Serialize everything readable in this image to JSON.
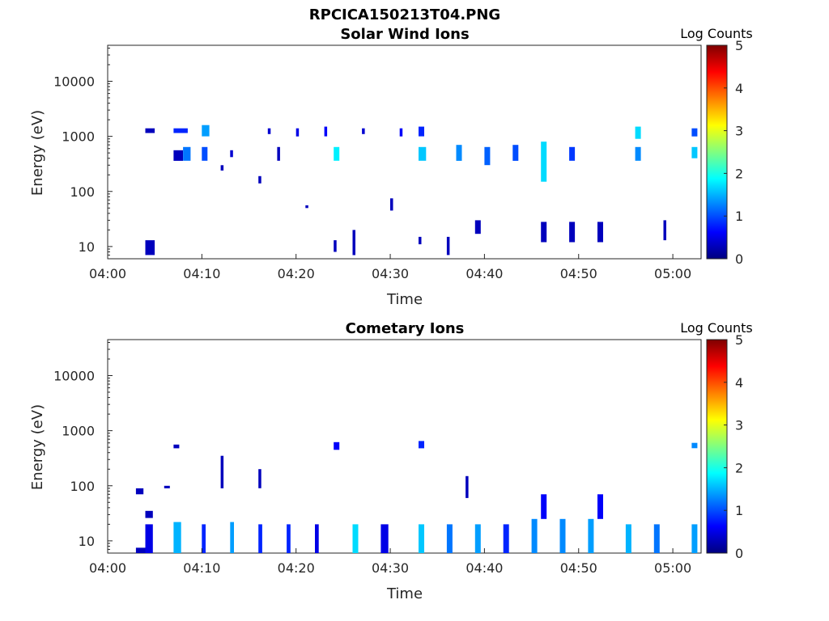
{
  "figure": {
    "title": "RPCICA150213T04.PNG"
  },
  "colorbar_colors": [
    "#00007f",
    "#0000ff",
    "#0080ff",
    "#00ffff",
    "#80ff80",
    "#ffff00",
    "#ff8000",
    "#ff0000",
    "#7f0000"
  ],
  "chart_data": [
    {
      "type": "heatmap",
      "title": "Solar Wind Ions",
      "xlabel": "Time",
      "ylabel": "Energy (eV)",
      "xlim": [
        "04:00",
        "05:03"
      ],
      "ylim": [
        6,
        45000
      ],
      "y_scale": "log",
      "x_ticks": [
        "04:00",
        "04:10",
        "04:20",
        "04:30",
        "04:40",
        "04:50",
        "05:00"
      ],
      "y_ticks": [
        "10",
        "100",
        "1000",
        "10000"
      ],
      "colorbar": {
        "label": "Log Counts",
        "range": [
          0,
          5
        ],
        "ticks": [
          "0",
          "1",
          "2",
          "3",
          "4",
          "5"
        ]
      },
      "colormap": "jet",
      "cells": [
        {
          "t": "04:04",
          "dt": 1,
          "e_lo": 1150,
          "e_hi": 1400,
          "v": 0.3
        },
        {
          "t": "04:04",
          "dt": 1,
          "e_lo": 7,
          "e_hi": 13,
          "v": 0.3
        },
        {
          "t": "04:07",
          "dt": 1.5,
          "e_lo": 1150,
          "e_hi": 1400,
          "v": 0.8
        },
        {
          "t": "04:07",
          "dt": 1,
          "e_lo": 360,
          "e_hi": 560,
          "v": 0.3
        },
        {
          "t": "04:08",
          "dt": 0.8,
          "e_lo": 360,
          "e_hi": 640,
          "v": 1.2
        },
        {
          "t": "04:10",
          "dt": 0.8,
          "e_lo": 1000,
          "e_hi": 1600,
          "v": 1.4
        },
        {
          "t": "04:10",
          "dt": 0.6,
          "e_lo": 360,
          "e_hi": 640,
          "v": 1.0
        },
        {
          "t": "04:12",
          "dt": 0.3,
          "e_lo": 240,
          "e_hi": 300,
          "v": 0.3
        },
        {
          "t": "04:13",
          "dt": 0.3,
          "e_lo": 420,
          "e_hi": 560,
          "v": 0.4
        },
        {
          "t": "04:16",
          "dt": 0.3,
          "e_lo": 140,
          "e_hi": 190,
          "v": 0.3
        },
        {
          "t": "04:17",
          "dt": 0.3,
          "e_lo": 1100,
          "e_hi": 1400,
          "v": 0.4
        },
        {
          "t": "04:18",
          "dt": 0.3,
          "e_lo": 360,
          "e_hi": 640,
          "v": 0.3
        },
        {
          "t": "04:20",
          "dt": 0.3,
          "e_lo": 1000,
          "e_hi": 1400,
          "v": 0.5
        },
        {
          "t": "04:21",
          "dt": 0.3,
          "e_lo": 50,
          "e_hi": 56,
          "v": 0.3
        },
        {
          "t": "04:23",
          "dt": 0.3,
          "e_lo": 1000,
          "e_hi": 1500,
          "v": 0.6
        },
        {
          "t": "04:24",
          "dt": 0.6,
          "e_lo": 360,
          "e_hi": 640,
          "v": 1.8
        },
        {
          "t": "04:24",
          "dt": 0.3,
          "e_lo": 8,
          "e_hi": 13,
          "v": 0.3
        },
        {
          "t": "04:26",
          "dt": 0.3,
          "e_lo": 7,
          "e_hi": 20,
          "v": 0.3
        },
        {
          "t": "04:27",
          "dt": 0.3,
          "e_lo": 1100,
          "e_hi": 1400,
          "v": 0.4
        },
        {
          "t": "04:30",
          "dt": 0.3,
          "e_lo": 45,
          "e_hi": 75,
          "v": 0.3
        },
        {
          "t": "04:31",
          "dt": 0.3,
          "e_lo": 1000,
          "e_hi": 1400,
          "v": 0.6
        },
        {
          "t": "04:33",
          "dt": 0.6,
          "e_lo": 1000,
          "e_hi": 1500,
          "v": 0.8
        },
        {
          "t": "04:33",
          "dt": 0.8,
          "e_lo": 360,
          "e_hi": 640,
          "v": 1.6
        },
        {
          "t": "04:33",
          "dt": 0.3,
          "e_lo": 11,
          "e_hi": 15,
          "v": 0.3
        },
        {
          "t": "04:36",
          "dt": 0.3,
          "e_lo": 7,
          "e_hi": 15,
          "v": 0.3
        },
        {
          "t": "04:37",
          "dt": 0.6,
          "e_lo": 360,
          "e_hi": 700,
          "v": 1.3
        },
        {
          "t": "04:39",
          "dt": 0.6,
          "e_lo": 17,
          "e_hi": 30,
          "v": 0.3
        },
        {
          "t": "04:40",
          "dt": 0.6,
          "e_lo": 300,
          "e_hi": 640,
          "v": 1.1
        },
        {
          "t": "04:43",
          "dt": 0.6,
          "e_lo": 360,
          "e_hi": 700,
          "v": 1.0
        },
        {
          "t": "04:46",
          "dt": 0.6,
          "e_lo": 150,
          "e_hi": 800,
          "v": 1.7
        },
        {
          "t": "04:46",
          "dt": 0.6,
          "e_lo": 12,
          "e_hi": 28,
          "v": 0.3
        },
        {
          "t": "04:49",
          "dt": 0.6,
          "e_lo": 360,
          "e_hi": 640,
          "v": 0.9
        },
        {
          "t": "04:49",
          "dt": 0.6,
          "e_lo": 12,
          "e_hi": 28,
          "v": 0.3
        },
        {
          "t": "04:52",
          "dt": 0.6,
          "e_lo": 12,
          "e_hi": 28,
          "v": 0.3
        },
        {
          "t": "04:56",
          "dt": 0.6,
          "e_lo": 900,
          "e_hi": 1500,
          "v": 1.7
        },
        {
          "t": "04:56",
          "dt": 0.6,
          "e_lo": 360,
          "e_hi": 640,
          "v": 1.3
        },
        {
          "t": "04:59",
          "dt": 0.3,
          "e_lo": 13,
          "e_hi": 30,
          "v": 0.3
        },
        {
          "t": "05:02",
          "dt": 0.6,
          "e_lo": 1000,
          "e_hi": 1400,
          "v": 1.0
        },
        {
          "t": "05:02",
          "dt": 0.6,
          "e_lo": 400,
          "e_hi": 640,
          "v": 1.6
        }
      ]
    },
    {
      "type": "heatmap",
      "title": "Cometary Ions",
      "xlabel": "Time",
      "ylabel": "Energy (eV)",
      "xlim": [
        "04:00",
        "05:03"
      ],
      "ylim": [
        6,
        45000
      ],
      "y_scale": "log",
      "x_ticks": [
        "04:00",
        "04:10",
        "04:20",
        "04:30",
        "04:40",
        "04:50",
        "05:00"
      ],
      "y_ticks": [
        "10",
        "100",
        "1000",
        "10000"
      ],
      "colorbar": {
        "label": "Log Counts",
        "range": [
          0,
          5
        ],
        "ticks": [
          "0",
          "1",
          "2",
          "3",
          "4",
          "5"
        ]
      },
      "colormap": "jet",
      "cells": [
        {
          "t": "04:03",
          "dt": 0.8,
          "e_lo": 70,
          "e_hi": 90,
          "v": 0.3
        },
        {
          "t": "04:03",
          "dt": 1,
          "e_lo": 6,
          "e_hi": 7.5,
          "v": 0.3
        },
        {
          "t": "04:04",
          "dt": 0.8,
          "e_lo": 26,
          "e_hi": 35,
          "v": 0.3
        },
        {
          "t": "04:04",
          "dt": 0.8,
          "e_lo": 6,
          "e_hi": 20,
          "v": 0.5
        },
        {
          "t": "04:06",
          "dt": 0.6,
          "e_lo": 90,
          "e_hi": 100,
          "v": 0.3
        },
        {
          "t": "04:07",
          "dt": 0.6,
          "e_lo": 480,
          "e_hi": 560,
          "v": 0.3
        },
        {
          "t": "04:07",
          "dt": 0.8,
          "e_lo": 6,
          "e_hi": 22,
          "v": 1.5
        },
        {
          "t": "04:10",
          "dt": 0.4,
          "e_lo": 6,
          "e_hi": 20,
          "v": 0.8
        },
        {
          "t": "04:12",
          "dt": 0.3,
          "e_lo": 90,
          "e_hi": 350,
          "v": 0.3
        },
        {
          "t": "04:13",
          "dt": 0.4,
          "e_lo": 6,
          "e_hi": 22,
          "v": 1.4
        },
        {
          "t": "04:16",
          "dt": 0.3,
          "e_lo": 90,
          "e_hi": 200,
          "v": 0.3
        },
        {
          "t": "04:16",
          "dt": 0.4,
          "e_lo": 6,
          "e_hi": 20,
          "v": 0.8
        },
        {
          "t": "04:19",
          "dt": 0.4,
          "e_lo": 6,
          "e_hi": 20,
          "v": 0.8
        },
        {
          "t": "04:22",
          "dt": 0.4,
          "e_lo": 6,
          "e_hi": 20,
          "v": 0.5
        },
        {
          "t": "04:24",
          "dt": 0.6,
          "e_lo": 450,
          "e_hi": 620,
          "v": 0.6
        },
        {
          "t": "04:26",
          "dt": 0.6,
          "e_lo": 6,
          "e_hi": 20,
          "v": 1.7
        },
        {
          "t": "04:29",
          "dt": 0.8,
          "e_lo": 6,
          "e_hi": 20,
          "v": 0.5
        },
        {
          "t": "04:33",
          "dt": 0.6,
          "e_lo": 480,
          "e_hi": 650,
          "v": 0.8
        },
        {
          "t": "04:33",
          "dt": 0.6,
          "e_lo": 6,
          "e_hi": 20,
          "v": 1.6
        },
        {
          "t": "04:36",
          "dt": 0.6,
          "e_lo": 6,
          "e_hi": 20,
          "v": 1.2
        },
        {
          "t": "04:38",
          "dt": 0.3,
          "e_lo": 60,
          "e_hi": 150,
          "v": 0.3
        },
        {
          "t": "04:39",
          "dt": 0.6,
          "e_lo": 6,
          "e_hi": 20,
          "v": 1.4
        },
        {
          "t": "04:42",
          "dt": 0.6,
          "e_lo": 6,
          "e_hi": 20,
          "v": 0.8
        },
        {
          "t": "04:45",
          "dt": 0.6,
          "e_lo": 6,
          "e_hi": 25,
          "v": 1.3
        },
        {
          "t": "04:46",
          "dt": 0.6,
          "e_lo": 25,
          "e_hi": 70,
          "v": 0.6
        },
        {
          "t": "04:48",
          "dt": 0.6,
          "e_lo": 6,
          "e_hi": 25,
          "v": 1.3
        },
        {
          "t": "04:51",
          "dt": 0.6,
          "e_lo": 6,
          "e_hi": 25,
          "v": 1.4
        },
        {
          "t": "04:52",
          "dt": 0.6,
          "e_lo": 25,
          "e_hi": 70,
          "v": 0.6
        },
        {
          "t": "04:55",
          "dt": 0.6,
          "e_lo": 6,
          "e_hi": 20,
          "v": 1.5
        },
        {
          "t": "04:58",
          "dt": 0.6,
          "e_lo": 6,
          "e_hi": 20,
          "v": 1.2
        },
        {
          "t": "05:02",
          "dt": 0.6,
          "e_lo": 480,
          "e_hi": 600,
          "v": 1.3
        },
        {
          "t": "05:02",
          "dt": 0.6,
          "e_lo": 6,
          "e_hi": 20,
          "v": 1.4
        }
      ]
    }
  ]
}
